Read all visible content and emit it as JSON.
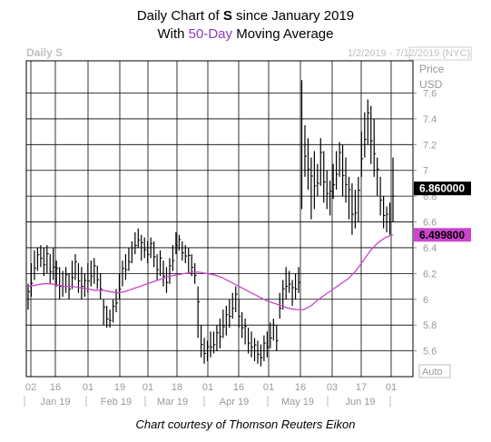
{
  "header": {
    "line1_pre": "Daily Chart of ",
    "line1_ticker": "S",
    "line1_post": " since January 2019",
    "line2_pre": "With ",
    "line2_ma": "50-Day",
    "line2_post": " Moving Average"
  },
  "chart_header": {
    "left_label": "Daily S",
    "date_range": "1/2/2019 - 7/12/2019 (NYC)",
    "axis_title_line1": "Price",
    "axis_title_line2": "USD",
    "auto_button": "Auto"
  },
  "credit": "Chart courtesy of Thomson Reuters Eikon",
  "colors": {
    "price_bars": "#000000",
    "moving_average": "#cc44cc",
    "ma_tag": "#cc44cc",
    "last_tag": "#000000",
    "grid": "#000000",
    "axis_text": "#9a9a9a"
  },
  "chart_data": {
    "type": "line",
    "title": "Daily Chart of S since January 2019",
    "subtitle": "With 50-Day Moving Average",
    "ylim": [
      5.4,
      7.85
    ],
    "y_ticks": [
      "5.6",
      "5.8",
      "6",
      "6.2",
      "6.4",
      "6.6",
      "6.8",
      "7",
      "7.2",
      "7.4",
      "7.6"
    ],
    "x_day_ticks": [
      "02",
      "16",
      "01",
      "19",
      "01",
      "18",
      "01",
      "16",
      "01",
      "16",
      "03",
      "17",
      "01"
    ],
    "x_month_labels": [
      "Jan 19",
      "Feb 19",
      "Mar 19",
      "Apr 19",
      "May 19",
      "Jun 19"
    ],
    "last_price_label": "6.860000",
    "ma_last_label": "6.499800",
    "grid": true,
    "series": [
      {
        "name": "Price",
        "kind": "ohlc",
        "daily_range": [
          [
            5.92,
            6.12
          ],
          [
            6.02,
            6.28
          ],
          [
            6.15,
            6.38
          ],
          [
            6.22,
            6.4
          ],
          [
            6.25,
            6.42
          ],
          [
            6.18,
            6.4
          ],
          [
            6.2,
            6.42
          ],
          [
            6.12,
            6.35
          ],
          [
            6.15,
            6.4
          ],
          [
            6.1,
            6.3
          ],
          [
            6.0,
            6.25
          ],
          [
            6.02,
            6.22
          ],
          [
            6.05,
            6.25
          ],
          [
            6.0,
            6.2
          ],
          [
            6.08,
            6.3
          ],
          [
            6.15,
            6.35
          ],
          [
            6.05,
            6.28
          ],
          [
            6.0,
            6.25
          ],
          [
            6.02,
            6.2
          ],
          [
            6.05,
            6.28
          ],
          [
            6.1,
            6.3
          ],
          [
            6.12,
            6.32
          ],
          [
            6.08,
            6.26
          ],
          [
            6.0,
            6.2
          ],
          [
            5.8,
            6.0
          ],
          [
            5.78,
            5.95
          ],
          [
            5.78,
            5.92
          ],
          [
            5.82,
            6.0
          ],
          [
            5.9,
            6.08
          ],
          [
            6.0,
            6.2
          ],
          [
            6.1,
            6.3
          ],
          [
            6.15,
            6.35
          ],
          [
            6.22,
            6.4
          ],
          [
            6.28,
            6.45
          ],
          [
            6.35,
            6.52
          ],
          [
            6.4,
            6.55
          ],
          [
            6.3,
            6.5
          ],
          [
            6.32,
            6.48
          ],
          [
            6.28,
            6.45
          ],
          [
            6.32,
            6.48
          ],
          [
            6.25,
            6.45
          ],
          [
            6.15,
            6.35
          ],
          [
            6.18,
            6.38
          ],
          [
            6.1,
            6.3
          ],
          [
            6.05,
            6.25
          ],
          [
            6.12,
            6.32
          ],
          [
            6.22,
            6.42
          ],
          [
            6.35,
            6.52
          ],
          [
            6.38,
            6.5
          ],
          [
            6.3,
            6.45
          ],
          [
            6.28,
            6.42
          ],
          [
            6.2,
            6.4
          ],
          [
            6.18,
            6.35
          ],
          [
            6.12,
            6.28
          ],
          [
            5.7,
            6.1
          ],
          [
            5.55,
            5.8
          ],
          [
            5.5,
            5.7
          ],
          [
            5.52,
            5.68
          ],
          [
            5.55,
            5.75
          ],
          [
            5.58,
            5.75
          ],
          [
            5.6,
            5.8
          ],
          [
            5.62,
            5.85
          ],
          [
            5.7,
            5.92
          ],
          [
            5.72,
            5.95
          ],
          [
            5.78,
            6.0
          ],
          [
            5.85,
            6.05
          ],
          [
            5.9,
            6.1
          ],
          [
            5.78,
            6.0
          ],
          [
            5.7,
            5.9
          ],
          [
            5.65,
            5.85
          ],
          [
            5.58,
            5.78
          ],
          [
            5.55,
            5.75
          ],
          [
            5.52,
            5.7
          ],
          [
            5.5,
            5.68
          ],
          [
            5.48,
            5.65
          ],
          [
            5.52,
            5.72
          ],
          [
            5.55,
            5.75
          ],
          [
            5.62,
            5.82
          ],
          [
            5.68,
            5.85
          ],
          [
            5.6,
            5.8
          ],
          [
            5.85,
            6.05
          ],
          [
            5.92,
            6.15
          ],
          [
            6.0,
            6.25
          ],
          [
            6.05,
            6.22
          ],
          [
            5.95,
            6.15
          ],
          [
            6.0,
            6.2
          ],
          [
            6.05,
            6.25
          ],
          [
            6.7,
            7.7
          ],
          [
            6.95,
            7.35
          ],
          [
            6.85,
            7.25
          ],
          [
            6.62,
            7.1
          ],
          [
            6.7,
            7.15
          ],
          [
            6.8,
            7.05
          ],
          [
            6.88,
            7.25
          ],
          [
            6.75,
            7.15
          ],
          [
            6.7,
            7.0
          ],
          [
            6.65,
            6.92
          ],
          [
            6.78,
            7.05
          ],
          [
            6.85,
            7.15
          ],
          [
            6.95,
            7.22
          ],
          [
            6.8,
            7.2
          ],
          [
            6.75,
            7.1
          ],
          [
            6.62,
            6.95
          ],
          [
            6.5,
            6.9
          ],
          [
            6.55,
            6.85
          ],
          [
            6.6,
            6.95
          ],
          [
            6.95,
            7.3
          ],
          [
            7.1,
            7.45
          ],
          [
            7.2,
            7.55
          ],
          [
            7.05,
            7.5
          ],
          [
            6.95,
            7.4
          ],
          [
            6.8,
            7.1
          ],
          [
            6.65,
            6.95
          ],
          [
            6.55,
            6.8
          ],
          [
            6.52,
            6.72
          ],
          [
            6.5,
            6.75
          ],
          [
            6.6,
            7.1
          ]
        ]
      },
      {
        "name": "50-Day",
        "kind": "line",
        "values": [
          6.1,
          6.11,
          6.12,
          6.12,
          6.11,
          6.1,
          6.1,
          6.09,
          6.08,
          6.07,
          6.07,
          6.06,
          6.05,
          6.06,
          6.08,
          6.1,
          6.12,
          6.14,
          6.16,
          6.18,
          6.19,
          6.2,
          6.21,
          6.21,
          6.2,
          6.19,
          6.17,
          6.14,
          6.11,
          6.08,
          6.05,
          6.02,
          5.99,
          5.97,
          5.95,
          5.93,
          5.92,
          5.92,
          5.95,
          6.0,
          6.04,
          6.08,
          6.12,
          6.16,
          6.22,
          6.3,
          6.38,
          6.44,
          6.48,
          6.5
        ]
      }
    ]
  }
}
